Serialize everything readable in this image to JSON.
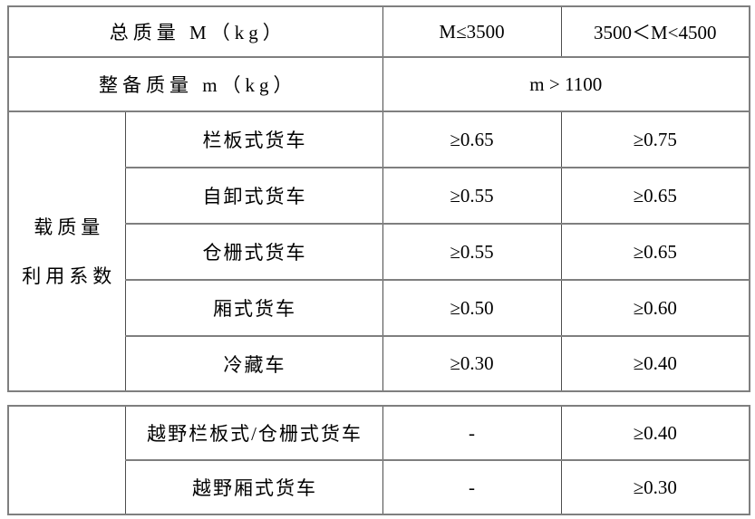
{
  "colors": {
    "border_gray": "#7f7f7f",
    "border_dark": "#4d4d4d",
    "text": "#000000",
    "background": "#ffffff"
  },
  "main_table": {
    "header_row_total_mass": {
      "label": "总质量 M（kg）",
      "range_low": "M≤3500",
      "range_high": "3500＜M<4500"
    },
    "header_row_curb_mass": {
      "label": "整备质量 m（kg）",
      "value": "m > 1100"
    },
    "group_label": {
      "line1": "载质量",
      "line2": "利用系数"
    },
    "rows": [
      {
        "type": "栏板式货车",
        "low": "≥0.65",
        "high": "≥0.75"
      },
      {
        "type": "自卸式货车",
        "low": "≥0.55",
        "high": "≥0.65"
      },
      {
        "type": "仓栅式货车",
        "low": "≥0.55",
        "high": "≥0.65"
      },
      {
        "type": "厢式货车",
        "low": "≥0.50",
        "high": "≥0.60"
      },
      {
        "type": "冷藏车",
        "low": "≥0.30",
        "high": "≥0.40"
      }
    ]
  },
  "offroad_table": {
    "rows": [
      {
        "type": "越野栏板式/仓栅式货车",
        "low": "-",
        "high": "≥0.40"
      },
      {
        "type": "越野厢式货车",
        "low": "-",
        "high": "≥0.30"
      }
    ]
  }
}
